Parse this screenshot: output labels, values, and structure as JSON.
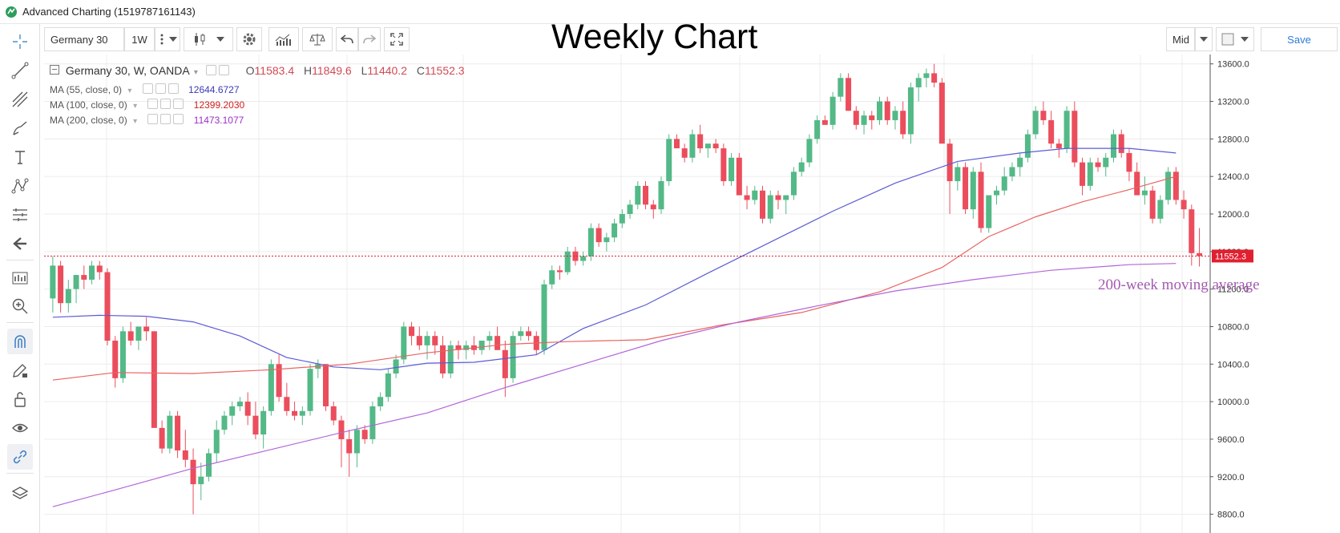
{
  "window": {
    "title": "Advanced Charting (1519787161143)"
  },
  "header": {
    "chart_title": "Weekly Chart"
  },
  "toolbar": {
    "symbol": "Germany 30",
    "interval": "1W",
    "price_type": "Mid",
    "save_label": "Save"
  },
  "legend": {
    "instrument": "Germany 30, W, OANDA",
    "open_label": "O",
    "open": "11583.4",
    "high_label": "H",
    "high": "11849.6",
    "low_label": "L",
    "low": "11440.2",
    "close_label": "C",
    "close": "11552.3"
  },
  "indicators": [
    {
      "label": "MA (55, close, 0)",
      "value": "12644.6727",
      "color": "#3a3ab8"
    },
    {
      "label": "MA (100, close, 0)",
      "value": "12399.2030",
      "color": "#d02020"
    },
    {
      "label": "MA (200, close, 0)",
      "value": "11473.1077",
      "color": "#9a30c8"
    }
  ],
  "price_label": "11552.3",
  "annotation": "200-week moving average",
  "chart_data": {
    "type": "candlestick",
    "timeframe": "W",
    "ylim": [
      8600,
      13700
    ],
    "y_ticks": [
      "13600.0",
      "13200.0",
      "12800.0",
      "12400.0",
      "12000.0",
      "11600.0",
      "11200.0",
      "10800.0",
      "10400.0",
      "10000.0",
      "9600.0",
      "9200.0",
      "8800.0"
    ],
    "colors": {
      "up": "#53b987",
      "down": "#eb4d5c",
      "ma55": "#5b5bd6",
      "ma100": "#e8635f",
      "ma200": "#b266d9",
      "price_line": "#e02030"
    },
    "ohlc": [
      [
        11100,
        11550,
        10950,
        11450
      ],
      [
        11450,
        11500,
        10950,
        11050
      ],
      [
        11050,
        11300,
        10950,
        11200
      ],
      [
        11200,
        11350,
        11050,
        11350
      ],
      [
        11350,
        11450,
        11200,
        11300
      ],
      [
        11300,
        11500,
        11250,
        11450
      ],
      [
        11450,
        11500,
        11300,
        11380
      ],
      [
        11380,
        11420,
        10600,
        10650
      ],
      [
        10650,
        10700,
        10150,
        10250
      ],
      [
        10250,
        10800,
        10200,
        10750
      ],
      [
        10750,
        10850,
        10600,
        10650
      ],
      [
        10650,
        10800,
        10550,
        10800
      ],
      [
        10800,
        10900,
        10650,
        10750
      ],
      [
        10750,
        10750,
        9750,
        9720
      ],
      [
        9720,
        9800,
        9450,
        9500
      ],
      [
        9500,
        9900,
        9450,
        9850
      ],
      [
        9850,
        9900,
        9400,
        9480
      ],
      [
        9480,
        9700,
        9300,
        9380
      ],
      [
        9380,
        9500,
        8800,
        9120
      ],
      [
        9120,
        9350,
        8950,
        9200
      ],
      [
        9200,
        9500,
        9150,
        9450
      ],
      [
        9450,
        9800,
        9350,
        9700
      ],
      [
        9700,
        9900,
        9650,
        9850
      ],
      [
        9850,
        10000,
        9750,
        9950
      ],
      [
        9950,
        10050,
        9900,
        10000
      ],
      [
        10000,
        10100,
        9750,
        9850
      ],
      [
        9850,
        10000,
        9600,
        9650
      ],
      [
        9650,
        9950,
        9500,
        9900
      ],
      [
        9900,
        10450,
        9850,
        10400
      ],
      [
        10400,
        10500,
        10000,
        10050
      ],
      [
        10050,
        10200,
        9850,
        9900
      ],
      [
        9900,
        10000,
        9800,
        9850
      ],
      [
        9850,
        9950,
        9750,
        9900
      ],
      [
        9900,
        10400,
        9850,
        10350
      ],
      [
        10350,
        10450,
        10250,
        10400
      ],
      [
        10400,
        10400,
        9900,
        9950
      ],
      [
        9950,
        10000,
        9750,
        9800
      ],
      [
        9800,
        9850,
        9300,
        9600
      ],
      [
        9600,
        9700,
        9200,
        9450
      ],
      [
        9450,
        9750,
        9300,
        9700
      ],
      [
        9700,
        9750,
        9550,
        9600
      ],
      [
        9600,
        10000,
        9550,
        9950
      ],
      [
        9950,
        10100,
        9900,
        10050
      ],
      [
        10050,
        10350,
        10000,
        10300
      ],
      [
        10300,
        10500,
        10250,
        10450
      ],
      [
        10450,
        10850,
        10400,
        10800
      ],
      [
        10800,
        10850,
        10600,
        10700
      ],
      [
        10700,
        10800,
        10550,
        10600
      ],
      [
        10600,
        10750,
        10450,
        10700
      ],
      [
        10700,
        10750,
        10500,
        10600
      ],
      [
        10600,
        10700,
        10250,
        10300
      ],
      [
        10300,
        10650,
        10250,
        10600
      ],
      [
        10600,
        10650,
        10450,
        10550
      ],
      [
        10550,
        10650,
        10450,
        10600
      ],
      [
        10600,
        10700,
        10500,
        10550
      ],
      [
        10550,
        10650,
        10500,
        10650
      ],
      [
        10650,
        10750,
        10550,
        10700
      ],
      [
        10700,
        10800,
        10550,
        10550
      ],
      [
        10550,
        10650,
        10050,
        10250
      ],
      [
        10250,
        10750,
        10200,
        10700
      ],
      [
        10700,
        10800,
        10650,
        10750
      ],
      [
        10750,
        10800,
        10650,
        10700
      ],
      [
        10700,
        10750,
        10500,
        10550
      ],
      [
        10550,
        11300,
        10500,
        11250
      ],
      [
        11250,
        11450,
        11200,
        11400
      ],
      [
        11400,
        11450,
        11300,
        11380
      ],
      [
        11380,
        11650,
        11350,
        11600
      ],
      [
        11600,
        11650,
        11450,
        11500
      ],
      [
        11500,
        11600,
        11450,
        11550
      ],
      [
        11550,
        11900,
        11500,
        11850
      ],
      [
        11850,
        11900,
        11650,
        11700
      ],
      [
        11700,
        11800,
        11600,
        11750
      ],
      [
        11750,
        11950,
        11700,
        11900
      ],
      [
        11900,
        12050,
        11850,
        12000
      ],
      [
        12000,
        12150,
        11950,
        12100
      ],
      [
        12100,
        12350,
        12050,
        12300
      ],
      [
        12300,
        12350,
        12050,
        12100
      ],
      [
        12100,
        12150,
        11950,
        12050
      ],
      [
        12050,
        12400,
        12000,
        12350
      ],
      [
        12350,
        12850,
        12300,
        12800
      ],
      [
        12800,
        12850,
        12700,
        12700
      ],
      [
        12700,
        12750,
        12550,
        12600
      ],
      [
        12600,
        12900,
        12550,
        12850
      ],
      [
        12850,
        12950,
        12650,
        12700
      ],
      [
        12700,
        12750,
        12600,
        12750
      ],
      [
        12750,
        12800,
        12650,
        12700
      ],
      [
        12700,
        12750,
        12300,
        12350
      ],
      [
        12350,
        12650,
        12300,
        12600
      ],
      [
        12600,
        12650,
        12200,
        12200
      ],
      [
        12200,
        12300,
        12050,
        12150
      ],
      [
        12150,
        12300,
        12100,
        12250
      ],
      [
        12250,
        12300,
        11900,
        11950
      ],
      [
        11950,
        12250,
        11900,
        12200
      ],
      [
        12200,
        12250,
        12050,
        12150
      ],
      [
        12150,
        12200,
        12000,
        12200
      ],
      [
        12200,
        12500,
        12150,
        12450
      ],
      [
        12450,
        12600,
        12400,
        12550
      ],
      [
        12550,
        12850,
        12500,
        12800
      ],
      [
        12800,
        13050,
        12750,
        13000
      ],
      [
        13000,
        13050,
        12950,
        12950
      ],
      [
        12950,
        13300,
        12900,
        13250
      ],
      [
        13250,
        13500,
        13200,
        13450
      ],
      [
        13450,
        13500,
        13100,
        13100
      ],
      [
        13100,
        13150,
        12900,
        12950
      ],
      [
        12950,
        13100,
        12850,
        13050
      ],
      [
        13050,
        13100,
        12900,
        13000
      ],
      [
        13000,
        13250,
        12950,
        13200
      ],
      [
        13200,
        13250,
        12950,
        13000
      ],
      [
        13000,
        13150,
        12900,
        13100
      ],
      [
        13100,
        13200,
        12800,
        12850
      ],
      [
        12850,
        13400,
        12750,
        13350
      ],
      [
        13350,
        13500,
        13200,
        13450
      ],
      [
        13450,
        13550,
        13350,
        13500
      ],
      [
        13500,
        13600,
        13350,
        13400
      ],
      [
        13400,
        13450,
        12750,
        12750
      ],
      [
        12750,
        12800,
        12000,
        12350
      ],
      [
        12350,
        12550,
        12250,
        12500
      ],
      [
        12500,
        12550,
        12000,
        12050
      ],
      [
        12050,
        12500,
        11950,
        12450
      ],
      [
        12450,
        12550,
        11800,
        11850
      ],
      [
        11850,
        12200,
        11800,
        12200
      ],
      [
        12200,
        12300,
        12100,
        12250
      ],
      [
        12250,
        12500,
        12200,
        12400
      ],
      [
        12400,
        12550,
        12350,
        12500
      ],
      [
        12500,
        12650,
        12400,
        12600
      ],
      [
        12600,
        12900,
        12550,
        12850
      ],
      [
        12850,
        13150,
        12800,
        13100
      ],
      [
        13100,
        13200,
        12950,
        13000
      ],
      [
        13000,
        13100,
        12700,
        12750
      ],
      [
        12750,
        12800,
        12600,
        12700
      ],
      [
        12700,
        13150,
        12650,
        13100
      ],
      [
        13100,
        13200,
        12500,
        12550
      ],
      [
        12550,
        12600,
        12200,
        12300
      ],
      [
        12300,
        12600,
        12250,
        12550
      ],
      [
        12550,
        12600,
        12450,
        12500
      ],
      [
        12500,
        12650,
        12400,
        12600
      ],
      [
        12600,
        12900,
        12550,
        12850
      ],
      [
        12850,
        12900,
        12600,
        12650
      ],
      [
        12650,
        12700,
        12350,
        12450
      ],
      [
        12450,
        12550,
        12200,
        12200
      ],
      [
        12200,
        12400,
        12100,
        12250
      ],
      [
        12250,
        12300,
        11900,
        11950
      ],
      [
        11950,
        12200,
        11900,
        12150
      ],
      [
        12150,
        12500,
        12100,
        12450
      ],
      [
        12450,
        12500,
        12100,
        12150
      ],
      [
        12150,
        12250,
        11950,
        12050
      ],
      [
        12050,
        12100,
        11450,
        11583
      ],
      [
        11583,
        11850,
        11440,
        11552
      ]
    ],
    "ma55": [
      [
        0,
        10900
      ],
      [
        6,
        10920
      ],
      [
        12,
        10910
      ],
      [
        18,
        10850
      ],
      [
        24,
        10700
      ],
      [
        30,
        10470
      ],
      [
        36,
        10370
      ],
      [
        42,
        10340
      ],
      [
        48,
        10410
      ],
      [
        54,
        10420
      ],
      [
        62,
        10500
      ],
      [
        68,
        10780
      ],
      [
        76,
        11030
      ],
      [
        84,
        11370
      ],
      [
        92,
        11700
      ],
      [
        100,
        12030
      ],
      [
        108,
        12330
      ],
      [
        116,
        12560
      ],
      [
        124,
        12650
      ],
      [
        130,
        12700
      ],
      [
        138,
        12700
      ],
      [
        144,
        12650
      ]
    ],
    "ma100": [
      [
        0,
        10230
      ],
      [
        8,
        10310
      ],
      [
        18,
        10300
      ],
      [
        28,
        10340
      ],
      [
        38,
        10400
      ],
      [
        48,
        10520
      ],
      [
        58,
        10610
      ],
      [
        66,
        10640
      ],
      [
        76,
        10660
      ],
      [
        86,
        10820
      ],
      [
        96,
        10950
      ],
      [
        106,
        11170
      ],
      [
        114,
        11430
      ],
      [
        120,
        11760
      ],
      [
        126,
        11970
      ],
      [
        132,
        12130
      ],
      [
        138,
        12260
      ],
      [
        144,
        12400
      ]
    ],
    "ma200": [
      [
        0,
        8880
      ],
      [
        8,
        9060
      ],
      [
        18,
        9290
      ],
      [
        28,
        9490
      ],
      [
        38,
        9690
      ],
      [
        48,
        9880
      ],
      [
        58,
        10150
      ],
      [
        68,
        10400
      ],
      [
        78,
        10650
      ],
      [
        88,
        10850
      ],
      [
        98,
        11020
      ],
      [
        108,
        11180
      ],
      [
        118,
        11300
      ],
      [
        128,
        11400
      ],
      [
        138,
        11460
      ],
      [
        144,
        11473
      ]
    ]
  }
}
